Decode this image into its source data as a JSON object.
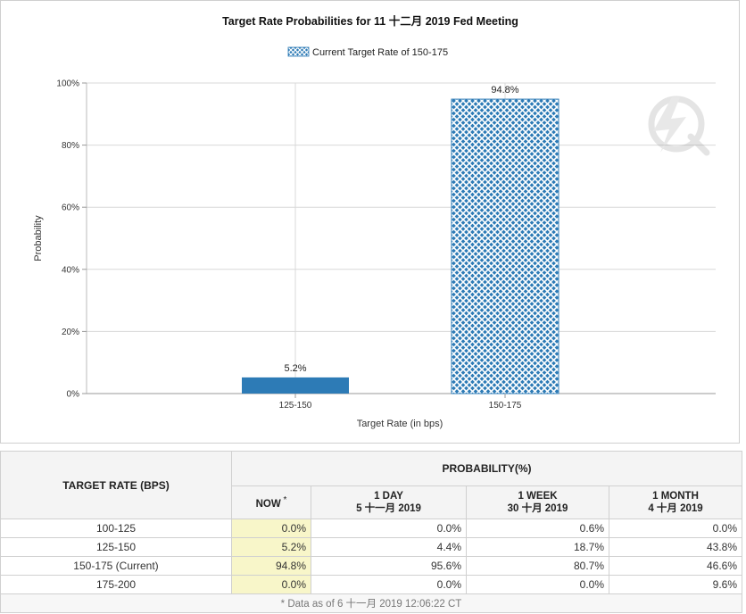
{
  "chart_data": {
    "type": "bar",
    "title": "Target Rate Probabilities for 11 十二月 2019 Fed Meeting",
    "legend": "Current Target Rate of 150-175",
    "legend_position": "top-center",
    "categories": [
      "125-150",
      "150-175"
    ],
    "values": [
      5.2,
      94.8
    ],
    "data_labels": [
      "5.2%",
      "94.8%"
    ],
    "highlighted_category": "150-175",
    "xlabel": "Target Rate (in bps)",
    "ylabel": "Probability",
    "ylim": [
      0,
      100
    ],
    "yticks": [
      "0%",
      "20%",
      "40%",
      "60%",
      "80%",
      "100%"
    ],
    "ytick_values": [
      0,
      20,
      40,
      60,
      80,
      100
    ],
    "grid": true,
    "colors": {
      "bar": "#2d7bb6",
      "highlight_fill": "#2d7bb6",
      "highlight_pattern": "#ffffff",
      "grid": "#d8d8d8"
    },
    "watermark_icon": "cme-fedwatch-logo"
  },
  "table": {
    "col_target_header": "TARGET RATE (BPS)",
    "col_prob_header": "PROBABILITY(%)",
    "sub_headers": [
      {
        "line1": "NOW",
        "line2": "",
        "star": "*"
      },
      {
        "line1": "1 DAY",
        "line2": "5 十一月 2019",
        "star": ""
      },
      {
        "line1": "1 WEEK",
        "line2": "30 十月 2019",
        "star": ""
      },
      {
        "line1": "1 MONTH",
        "line2": "4 十月 2019",
        "star": ""
      }
    ],
    "rows": [
      {
        "rate": "100-125",
        "now": "0.0%",
        "day": "0.0%",
        "week": "0.6%",
        "month": "0.0%"
      },
      {
        "rate": "125-150",
        "now": "5.2%",
        "day": "4.4%",
        "week": "18.7%",
        "month": "43.8%"
      },
      {
        "rate": "150-175 (Current)",
        "now": "94.8%",
        "day": "95.6%",
        "week": "80.7%",
        "month": "46.6%"
      },
      {
        "rate": "175-200",
        "now": "0.0%",
        "day": "0.0%",
        "week": "0.0%",
        "month": "9.6%"
      }
    ],
    "footnote": "* Data as of 6 十一月 2019 12:06:22 CT"
  }
}
